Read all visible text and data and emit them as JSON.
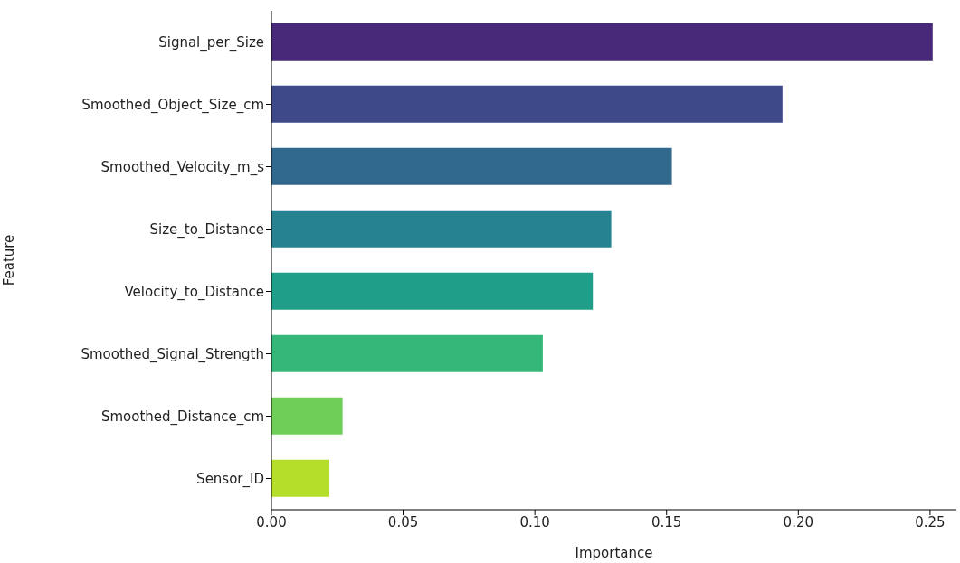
{
  "chart_data": {
    "type": "bar",
    "orientation": "horizontal",
    "xlabel": "Importance",
    "ylabel": "Feature",
    "categories": [
      "Signal_per_Size",
      "Smoothed_Object_Size_cm",
      "Smoothed_Velocity_m_s",
      "Size_to_Distance",
      "Velocity_to_Distance",
      "Smoothed_Signal_Strength",
      "Smoothed_Distance_cm",
      "Sensor_ID"
    ],
    "values": [
      0.251,
      0.194,
      0.152,
      0.129,
      0.122,
      0.103,
      0.027,
      0.022
    ],
    "colors": [
      "#482878",
      "#3e4989",
      "#31688e",
      "#26828e",
      "#1f9e89",
      "#35b779",
      "#6ece58",
      "#b5de2b"
    ],
    "xlim": [
      0,
      0.26
    ],
    "xticks": [
      {
        "value": 0,
        "label": "0.00"
      },
      {
        "value": 0.05,
        "label": "0.05"
      },
      {
        "value": 0.1,
        "label": "0.10"
      },
      {
        "value": 0.15,
        "label": "0.15"
      },
      {
        "value": 0.2,
        "label": "0.20"
      },
      {
        "value": 0.25,
        "label": "0.25"
      }
    ],
    "grid": false
  }
}
